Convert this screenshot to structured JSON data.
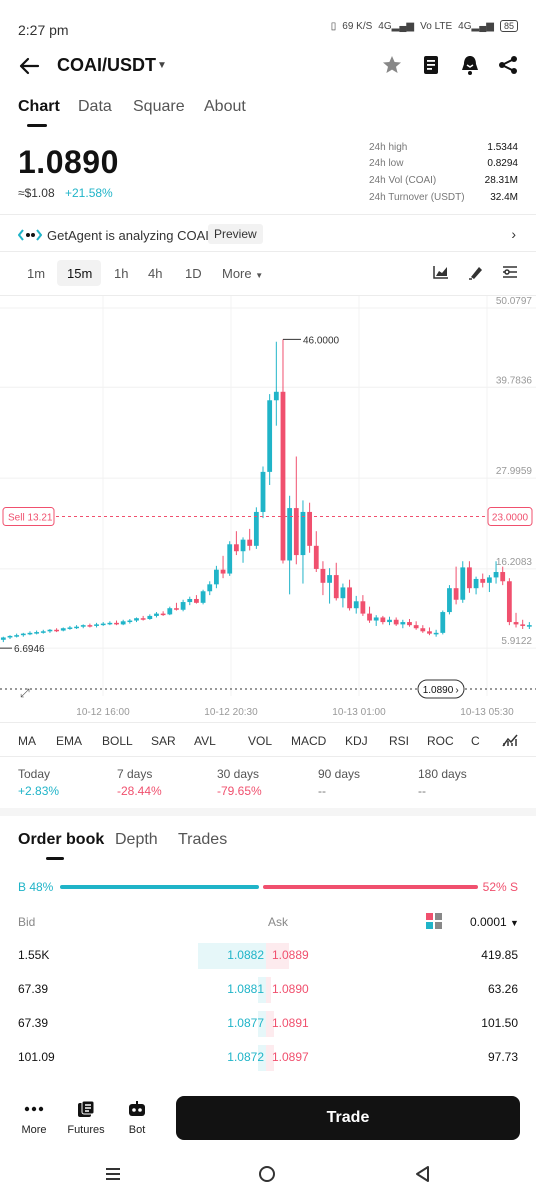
{
  "status": {
    "time": "2:27 pm",
    "net1": "69 K/S",
    "net2": "4G",
    "net3": "Vo LTE",
    "net4": "4G",
    "battery": "85"
  },
  "header": {
    "pair": "COAI/USDT",
    "icons": [
      "back-arrow-icon",
      "caret-down-icon",
      "star-icon",
      "notebook-icon",
      "alert-icon",
      "share-icon"
    ]
  },
  "tabs": [
    "Chart",
    "Data",
    "Square",
    "About"
  ],
  "price": {
    "last": "1.0890",
    "usd": "≈$1.08",
    "change": "+21.58%",
    "stats": [
      {
        "label": "24h high",
        "value": "1.5344"
      },
      {
        "label": "24h low",
        "value": "0.8294"
      },
      {
        "label": "24h Vol (COAI)",
        "value": "28.31M"
      },
      {
        "label": "24h Turnover (USDT)",
        "value": "32.4M"
      }
    ]
  },
  "agent": {
    "text": "GetAgent is analyzing COAI.",
    "preview": "Preview"
  },
  "timeframes": [
    "1m",
    "15m",
    "1h",
    "4h",
    "1D",
    "More"
  ],
  "chart": {
    "y_labels": [
      "50.0797",
      "39.7836",
      "27.9959",
      "16.2083",
      "5.9122"
    ],
    "x_labels": [
      "10-12 16:00",
      "10-12 20:30",
      "10-13 01:00",
      "10-13 05:30"
    ],
    "high_label": "46.0000",
    "low_label": "6.6946",
    "sell_label": "Sell 13.21",
    "line_label": "23.0000",
    "current_label": "1.0890",
    "colors": {
      "up": "#20b4c8",
      "down": "#f0506e"
    }
  },
  "chart_data": {
    "type": "candlestick",
    "title": "",
    "xlabel": "",
    "ylabel": "",
    "ylim": [
      0,
      50.0797
    ],
    "x_ticks": [
      "10-12 16:00",
      "10-12 20:30",
      "10-13 01:00",
      "10-13 05:30"
    ],
    "y_ticks": [
      50.0797,
      39.7836,
      27.9959,
      16.2083,
      5.9122
    ],
    "annotations": {
      "high": 46.0,
      "low": 6.6946,
      "sell": 13.21,
      "order_line": 23.0,
      "current": 1.089
    },
    "candles": [
      [
        7.0,
        7.4,
        6.7,
        7.3
      ],
      [
        7.3,
        7.6,
        7.1,
        7.5
      ],
      [
        7.5,
        7.8,
        7.3,
        7.6
      ],
      [
        7.6,
        7.9,
        7.4,
        7.8
      ],
      [
        7.8,
        8.1,
        7.6,
        7.9
      ],
      [
        7.9,
        8.2,
        7.7,
        8.0
      ],
      [
        8.0,
        8.3,
        7.8,
        8.1
      ],
      [
        8.1,
        8.4,
        7.9,
        8.3
      ],
      [
        8.3,
        8.5,
        8.0,
        8.2
      ],
      [
        8.2,
        8.6,
        8.1,
        8.5
      ],
      [
        8.5,
        8.8,
        8.3,
        8.6
      ],
      [
        8.6,
        8.9,
        8.4,
        8.7
      ],
      [
        8.7,
        9.0,
        8.5,
        8.9
      ],
      [
        8.9,
        9.1,
        8.6,
        8.8
      ],
      [
        8.8,
        9.2,
        8.6,
        9.0
      ],
      [
        9.0,
        9.3,
        8.8,
        9.1
      ],
      [
        9.1,
        9.4,
        8.9,
        9.2
      ],
      [
        9.2,
        9.5,
        8.9,
        9.0
      ],
      [
        9.0,
        9.6,
        8.9,
        9.4
      ],
      [
        9.4,
        9.7,
        9.1,
        9.5
      ],
      [
        9.5,
        9.9,
        9.3,
        9.8
      ],
      [
        9.8,
        10.1,
        9.5,
        9.7
      ],
      [
        9.7,
        10.3,
        9.6,
        10.1
      ],
      [
        10.1,
        10.6,
        9.9,
        10.4
      ],
      [
        10.4,
        10.7,
        10.1,
        10.3
      ],
      [
        10.3,
        11.3,
        10.2,
        11.1
      ],
      [
        11.1,
        11.8,
        10.8,
        10.9
      ],
      [
        10.9,
        12.2,
        10.7,
        11.9
      ],
      [
        11.9,
        12.6,
        11.5,
        12.3
      ],
      [
        12.3,
        12.8,
        11.7,
        11.8
      ],
      [
        11.8,
        13.5,
        11.6,
        13.3
      ],
      [
        13.3,
        14.6,
        12.8,
        14.2
      ],
      [
        14.2,
        16.6,
        13.7,
        16.1
      ],
      [
        16.1,
        17.9,
        15.0,
        15.6
      ],
      [
        15.6,
        19.8,
        15.3,
        19.4
      ],
      [
        19.4,
        21.1,
        18.0,
        18.5
      ],
      [
        18.5,
        20.3,
        17.0,
        20.0
      ],
      [
        20.0,
        21.4,
        18.6,
        19.2
      ],
      [
        19.2,
        24.2,
        18.8,
        23.6
      ],
      [
        23.6,
        29.5,
        22.8,
        28.8
      ],
      [
        28.8,
        38.9,
        27.1,
        38.1
      ],
      [
        38.1,
        45.7,
        34.8,
        39.2
      ],
      [
        39.2,
        46.0,
        16.9,
        17.3
      ],
      [
        17.3,
        25.7,
        12.9,
        24.1
      ],
      [
        24.1,
        30.8,
        16.8,
        18.0
      ],
      [
        18.0,
        25.1,
        14.3,
        23.6
      ],
      [
        23.6,
        24.8,
        18.3,
        19.2
      ],
      [
        19.2,
        21.1,
        15.8,
        16.2
      ],
      [
        16.2,
        17.2,
        12.8,
        14.4
      ],
      [
        14.4,
        16.3,
        11.7,
        15.4
      ],
      [
        15.4,
        17.0,
        12.1,
        12.4
      ],
      [
        12.4,
        14.3,
        11.2,
        13.8
      ],
      [
        13.8,
        14.8,
        10.8,
        11.1
      ],
      [
        11.1,
        12.7,
        10.4,
        12.0
      ],
      [
        12.0,
        12.8,
        10.1,
        10.4
      ],
      [
        10.4,
        11.3,
        9.2,
        9.5
      ],
      [
        9.5,
        10.2,
        8.8,
        9.9
      ],
      [
        9.9,
        10.1,
        9.0,
        9.3
      ],
      [
        9.3,
        10.0,
        8.9,
        9.6
      ],
      [
        9.6,
        9.9,
        8.8,
        9.0
      ],
      [
        9.0,
        9.6,
        8.5,
        9.3
      ],
      [
        9.3,
        9.7,
        8.7,
        8.9
      ],
      [
        8.9,
        9.4,
        8.3,
        8.5
      ],
      [
        8.5,
        8.9,
        7.9,
        8.1
      ],
      [
        8.1,
        8.6,
        7.6,
        7.8
      ],
      [
        7.8,
        8.3,
        7.4,
        7.9
      ],
      [
        7.9,
        10.8,
        7.7,
        10.6
      ],
      [
        10.6,
        14.1,
        10.3,
        13.7
      ],
      [
        13.7,
        16.5,
        11.6,
        12.2
      ],
      [
        12.2,
        17.2,
        11.8,
        16.4
      ],
      [
        16.4,
        17.2,
        13.1,
        13.7
      ],
      [
        13.7,
        15.2,
        12.9,
        14.9
      ],
      [
        14.9,
        15.6,
        13.8,
        14.4
      ],
      [
        14.4,
        15.4,
        13.2,
        15.1
      ],
      [
        15.1,
        17.2,
        14.3,
        15.8
      ],
      [
        15.8,
        16.5,
        14.1,
        14.6
      ],
      [
        14.6,
        15.0,
        8.9,
        9.3
      ],
      [
        9.3,
        10.5,
        8.6,
        9.0
      ],
      [
        9.0,
        9.6,
        8.4,
        8.8
      ],
      [
        8.8,
        9.3,
        8.4,
        8.9
      ]
    ]
  },
  "indicators": [
    "MA",
    "EMA",
    "BOLL",
    "SAR",
    "AVL",
    "VOL",
    "MACD",
    "KDJ",
    "RSI",
    "ROC",
    "C"
  ],
  "periods": [
    {
      "label": "Today",
      "value": "+2.83%"
    },
    {
      "label": "7 days",
      "value": "-28.44%"
    },
    {
      "label": "30 days",
      "value": "-79.65%"
    },
    {
      "label": "90 days",
      "value": "--"
    },
    {
      "label": "180 days",
      "value": "--"
    }
  ],
  "orderbook": {
    "tabs": [
      "Order book",
      "Depth",
      "Trades"
    ],
    "buy_pct": "B 48%",
    "sell_pct": "52% S",
    "buy_fraction": 0.48,
    "bid_label": "Bid",
    "ask_label": "Ask",
    "precision": "0.0001",
    "rows": [
      {
        "bid_qty": "1.55K",
        "bid": "1.0882",
        "ask": "1.0889",
        "ask_qty": "419.85",
        "bid_depth": 0.45,
        "ask_depth": 0.15
      },
      {
        "bid_qty": "67.39",
        "bid": "1.0881",
        "ask": "1.0890",
        "ask_qty": "63.26",
        "bid_depth": 0.05,
        "ask_depth": 0.03
      },
      {
        "bid_qty": "67.39",
        "bid": "1.0877",
        "ask": "1.0891",
        "ask_qty": "101.50",
        "bid_depth": 0.05,
        "ask_depth": 0.05
      },
      {
        "bid_qty": "101.09",
        "bid": "1.0872",
        "ask": "1.0897",
        "ask_qty": "97.73",
        "bid_depth": 0.05,
        "ask_depth": 0.05
      }
    ]
  },
  "bottom": {
    "more": "More",
    "futures": "Futures",
    "bot": "Bot",
    "trade": "Trade"
  }
}
